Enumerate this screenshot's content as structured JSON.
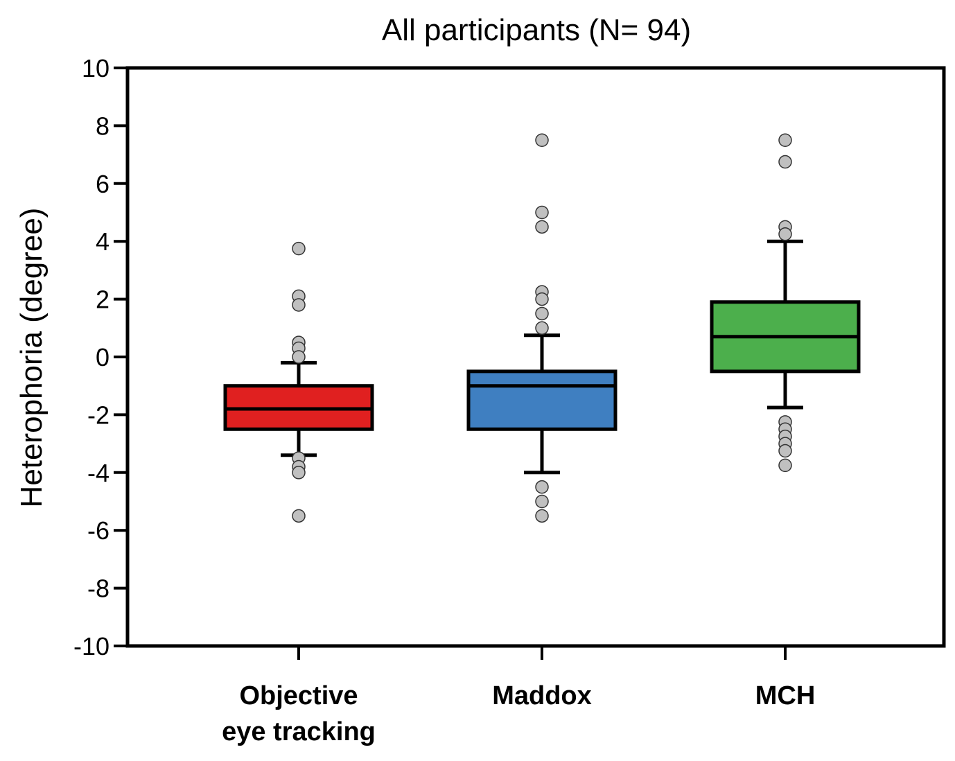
{
  "chart_data": {
    "type": "box",
    "title": "All participants (N= 94)",
    "xlabel": "",
    "ylabel": "Heterophoria (degree)",
    "ylim": [
      -10,
      10
    ],
    "yticks": [
      10,
      8,
      6,
      4,
      2,
      0,
      -2,
      -4,
      -6,
      -8,
      -10
    ],
    "ytick_labels": [
      "10",
      "8",
      "6",
      "4",
      "2",
      "0",
      "-2",
      "-4",
      "-6",
      "-8",
      "-10"
    ],
    "grid": false,
    "legend": "none",
    "categories": [
      [
        "Objective",
        "eye tracking"
      ],
      [
        "Maddox"
      ],
      [
        "MCH"
      ]
    ],
    "boxes": [
      {
        "color": "#e02020",
        "whisker_low": -3.4,
        "q1": -2.5,
        "median": -1.8,
        "q3": -1.0,
        "whisker_high": -0.2,
        "outliers": [
          3.75,
          2.1,
          1.8,
          0.5,
          0.3,
          0.0,
          -3.5,
          -3.8,
          -4.0,
          -5.5
        ]
      },
      {
        "color": "#3f7fc1",
        "whisker_low": -4.0,
        "q1": -2.5,
        "median": -1.0,
        "q3": -0.5,
        "whisker_high": 0.75,
        "outliers": [
          7.5,
          5.0,
          4.5,
          2.25,
          2.0,
          1.5,
          1.0,
          -4.5,
          -5.0,
          -5.5
        ]
      },
      {
        "color": "#4caf4c",
        "whisker_low": -1.75,
        "q1": -0.5,
        "median": 0.7,
        "q3": 1.9,
        "whisker_high": 4.0,
        "outliers": [
          7.5,
          6.75,
          4.5,
          4.25,
          -2.25,
          -2.5,
          -2.75,
          -3.0,
          -3.25,
          -3.75
        ]
      }
    ],
    "outlier_color": "#c0c0c0"
  }
}
